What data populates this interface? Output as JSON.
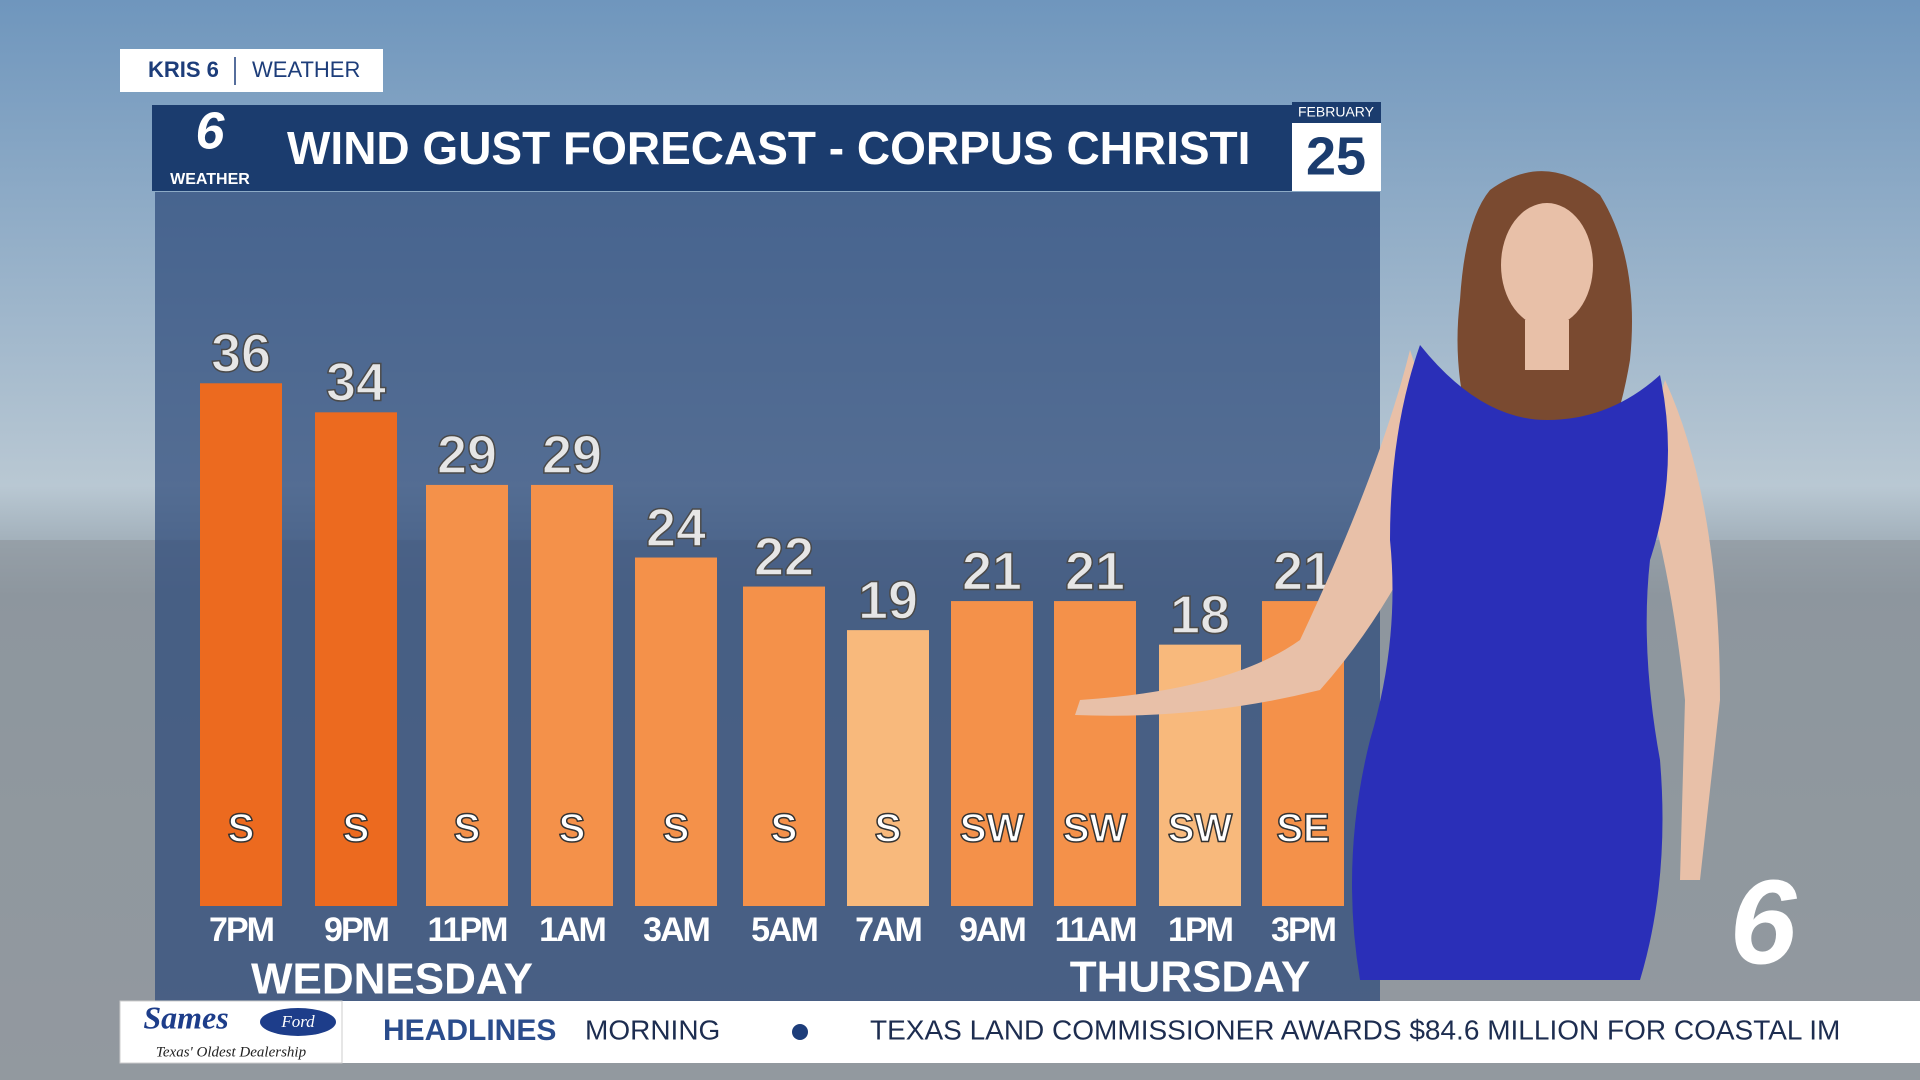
{
  "header": {
    "station": "KRIS 6",
    "section": "WEATHER"
  },
  "logo": {
    "number": "6",
    "label": "WEATHER"
  },
  "date": {
    "month": "FEBRUARY",
    "day": "25"
  },
  "chart_data": {
    "type": "bar",
    "title": "WIND GUST FORECAST - CORPUS CHRISTI",
    "categories": [
      "7PM",
      "9PM",
      "11PM",
      "1AM",
      "3AM",
      "5AM",
      "7AM",
      "9AM",
      "11AM",
      "1PM",
      "3PM"
    ],
    "values": [
      36,
      34,
      29,
      29,
      24,
      22,
      19,
      21,
      21,
      18,
      21
    ],
    "colors": [
      "#ec6a1f",
      "#ec6a1f",
      "#f4914a",
      "#f4914a",
      "#f4914a",
      "#f4914a",
      "#f8b97c",
      "#f4914a",
      "#f4914a",
      "#f8b97c",
      "#f4914a"
    ],
    "directions": [
      "S",
      "S",
      "S",
      "S",
      "S",
      "S",
      "S",
      "SW",
      "SW",
      "SW",
      "SE"
    ],
    "day_labels": [
      "WEDNESDAY",
      "THURSDAY"
    ]
  },
  "ticker": {
    "sponsor": "Sames",
    "sponsor_brand": "Ford",
    "sponsor_tagline": "Texas' Oldest Dealership",
    "section": "HEADLINES",
    "items": [
      "MORNING",
      "TEXAS LAND COMMISSIONER AWARDS $84.6 MILLION FOR COASTAL IM"
    ]
  },
  "bug": "6"
}
